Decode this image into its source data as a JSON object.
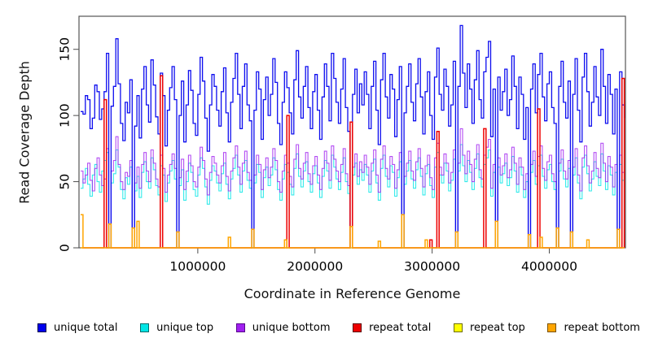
{
  "chart_data": {
    "type": "line",
    "style": "step",
    "title": "",
    "xlabel": "Coordinate in Reference Genome",
    "ylabel": "Read Coverage Depth",
    "xlim": [
      0,
      4650000
    ],
    "ylim": [
      0,
      175
    ],
    "x_ticks": [
      1000000,
      2000000,
      3000000,
      4000000
    ],
    "y_ticks": [
      0,
      50,
      100,
      150
    ],
    "grid": false,
    "legend_position": "bottom",
    "x_start": 0,
    "x_step": 20000,
    "n_points": 233,
    "series": [
      {
        "name": "unique total",
        "color": "#0000EE",
        "border": "#00004D",
        "values": [
          103,
          101,
          115,
          112,
          90,
          98,
          123,
          118,
          97,
          105,
          118,
          147,
          0,
          107,
          122,
          158,
          124,
          94,
          81,
          110,
          102,
          127,
          0,
          92,
          115,
          83,
          120,
          137,
          108,
          95,
          142,
          123,
          99,
          86,
          132,
          115,
          77,
          104,
          121,
          137,
          112,
          0,
          100,
          126,
          80,
          108,
          134,
          119,
          94,
          85,
          116,
          144,
          126,
          98,
          73,
          108,
          131,
          122,
          104,
          92,
          118,
          136,
          102,
          80,
          110,
          128,
          147,
          116,
          90,
          122,
          139,
          108,
          96,
          0,
          104,
          133,
          120,
          82,
          112,
          129,
          100,
          116,
          143,
          125,
          94,
          78,
          110,
          133,
          121,
          102,
          86,
          127,
          149,
          114,
          98,
          122,
          137,
          106,
          90,
          118,
          131,
          104,
          82,
          114,
          139,
          122,
          96,
          147,
          128,
          110,
          94,
          120,
          143,
          106,
          88,
          0,
          116,
          135,
          102,
          124,
          108,
          133,
          116,
          90,
          122,
          141,
          104,
          78,
          127,
          147,
          114,
          98,
          131,
          120,
          84,
          112,
          137,
          0,
          102,
          122,
          139,
          110,
          96,
          124,
          143,
          114,
          86,
          118,
          133,
          100,
          82,
          129,
          151,
          116,
          104,
          135,
          122,
          92,
          108,
          141,
          0,
          122,
          168,
          132,
          106,
          139,
          120,
          94,
          127,
          149,
          112,
          98,
          133,
          144,
          156,
          84,
          120,
          0,
          129,
          104,
          118,
          135,
          100,
          112,
          145,
          122,
          90,
          129,
          116,
          82,
          106,
          0,
          120,
          139,
          102,
          131,
          147,
          114,
          96,
          124,
          133,
          106,
          94,
          0,
          122,
          141,
          110,
          98,
          126,
          0,
          116,
          143,
          104,
          80,
          129,
          147,
          118,
          92,
          110,
          137,
          114,
          100,
          150,
          122,
          94,
          131,
          116,
          86,
          120,
          0,
          133,
          108,
          98
        ]
      },
      {
        "name": "unique top",
        "color": "#00E5E5",
        "border": "#006B6B",
        "values": [
          45,
          52,
          60,
          48,
          39,
          55,
          63,
          50,
          42,
          58,
          66,
          72,
          0,
          49,
          56,
          74,
          61,
          44,
          37,
          53,
          48,
          61,
          0,
          43,
          54,
          38,
          57,
          65,
          50,
          45,
          68,
          59,
          47,
          40,
          62,
          55,
          35,
          49,
          58,
          66,
          52,
          0,
          47,
          59,
          36,
          50,
          64,
          57,
          44,
          39,
          55,
          68,
          60,
          46,
          33,
          51,
          62,
          58,
          49,
          43,
          56,
          64,
          48,
          37,
          52,
          60,
          70,
          55,
          42,
          58,
          66,
          51,
          45,
          0,
          49,
          63,
          57,
          38,
          53,
          61,
          47,
          55,
          68,
          59,
          44,
          36,
          52,
          63,
          57,
          48,
          40,
          60,
          71,
          54,
          46,
          58,
          65,
          50,
          42,
          56,
          62,
          49,
          38,
          54,
          66,
          58,
          45,
          70,
          61,
          52,
          44,
          57,
          68,
          50,
          41,
          0,
          55,
          64,
          48,
          59,
          51,
          63,
          55,
          42,
          58,
          67,
          49,
          36,
          60,
          70,
          54,
          46,
          62,
          57,
          39,
          53,
          65,
          0,
          48,
          58,
          66,
          52,
          45,
          59,
          68,
          54,
          40,
          56,
          63,
          47,
          38,
          61,
          72,
          55,
          49,
          64,
          58,
          43,
          51,
          67,
          0,
          58,
          78,
          62,
          50,
          66,
          57,
          44,
          60,
          71,
          53,
          46,
          63,
          68,
          74,
          39,
          57,
          0,
          61,
          49,
          56,
          64,
          47,
          53,
          69,
          58,
          42,
          61,
          55,
          38,
          50,
          0,
          57,
          66,
          48,
          62,
          70,
          54,
          45,
          59,
          63,
          50,
          44,
          0,
          58,
          67,
          52,
          46,
          60,
          0,
          55,
          68,
          49,
          37,
          61,
          70,
          56,
          43,
          52,
          65,
          54,
          47,
          71,
          58,
          44,
          62,
          55,
          40,
          57,
          0,
          63,
          51,
          46
        ]
      },
      {
        "name": "unique bottom",
        "color": "#A020F0",
        "border": "#58068C",
        "values": [
          58,
          49,
          55,
          64,
          51,
          43,
          60,
          68,
          55,
          47,
          52,
          75,
          0,
          58,
          66,
          84,
          63,
          50,
          44,
          57,
          54,
          66,
          0,
          49,
          61,
          45,
          63,
          72,
          58,
          50,
          74,
          64,
          52,
          46,
          70,
          60,
          42,
          55,
          63,
          71,
          60,
          0,
          53,
          67,
          44,
          58,
          70,
          62,
          50,
          46,
          61,
          76,
          66,
          52,
          40,
          57,
          69,
          64,
          55,
          49,
          62,
          72,
          54,
          43,
          58,
          68,
          77,
          61,
          48,
          64,
          73,
          57,
          51,
          0,
          55,
          70,
          63,
          44,
          59,
          68,
          53,
          61,
          75,
          66,
          50,
          42,
          58,
          70,
          64,
          54,
          46,
          67,
          78,
          60,
          52,
          64,
          72,
          56,
          48,
          62,
          69,
          55,
          44,
          60,
          73,
          64,
          51,
          77,
          67,
          58,
          50,
          63,
          75,
          56,
          47,
          0,
          61,
          71,
          54,
          65,
          57,
          70,
          61,
          48,
          64,
          74,
          55,
          42,
          67,
          77,
          60,
          52,
          69,
          63,
          45,
          59,
          72,
          0,
          54,
          64,
          73,
          58,
          51,
          65,
          75,
          60,
          46,
          62,
          70,
          53,
          44,
          68,
          79,
          61,
          55,
          71,
          64,
          49,
          57,
          74,
          0,
          64,
          90,
          70,
          56,
          73,
          63,
          50,
          67,
          78,
          59,
          52,
          70,
          76,
          82,
          45,
          63,
          0,
          68,
          55,
          62,
          71,
          53,
          59,
          76,
          64,
          48,
          68,
          61,
          44,
          56,
          0,
          63,
          73,
          54,
          69,
          77,
          60,
          51,
          65,
          70,
          56,
          50,
          0,
          64,
          74,
          58,
          52,
          66,
          0,
          61,
          75,
          55,
          43,
          68,
          77,
          62,
          49,
          58,
          72,
          60,
          53,
          79,
          64,
          50,
          69,
          61,
          46,
          63,
          0,
          70,
          57,
          52
        ]
      },
      {
        "name": "repeat total",
        "color": "#EE0000",
        "border": "#5C0000",
        "spikes": [
          [
            10,
            112
          ],
          [
            34,
            130
          ],
          [
            88,
            100
          ],
          [
            115,
            95
          ],
          [
            149,
            6
          ],
          [
            152,
            88
          ],
          [
            172,
            90
          ],
          [
            195,
            105
          ],
          [
            231,
            128
          ]
        ]
      },
      {
        "name": "repeat top",
        "color": "#FFFF00",
        "border": "#6B6B00",
        "spikes": []
      },
      {
        "name": "repeat bottom",
        "color": "#FFA500",
        "border": "#7A5200",
        "spikes": [
          [
            0,
            25
          ],
          [
            12,
            18
          ],
          [
            22,
            15
          ],
          [
            24,
            20
          ],
          [
            41,
            12
          ],
          [
            63,
            8
          ],
          [
            73,
            14
          ],
          [
            87,
            6
          ],
          [
            115,
            16
          ],
          [
            127,
            5
          ],
          [
            137,
            25
          ],
          [
            147,
            6
          ],
          [
            160,
            12
          ],
          [
            177,
            20
          ],
          [
            191,
            10
          ],
          [
            196,
            8
          ],
          [
            203,
            15
          ],
          [
            209,
            12
          ],
          [
            216,
            6
          ],
          [
            229,
            14
          ]
        ]
      }
    ]
  },
  "axis": {
    "box_color": "#555555",
    "tick_color": "#4D4D4D",
    "tick_label_color": "#000000"
  }
}
